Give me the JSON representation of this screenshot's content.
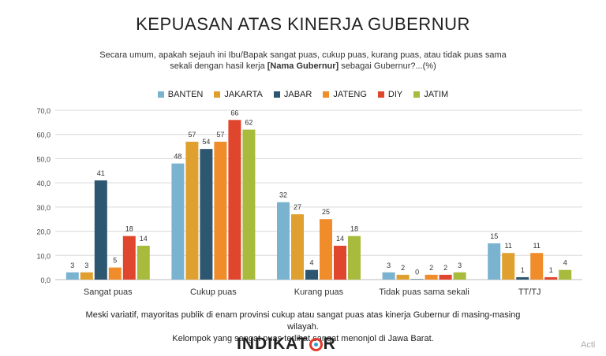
{
  "title": "KEPUASAN ATAS KINERJA GUBERNUR",
  "subtitle_line1": "Secara umum, apakah sejauh ini Ibu/Bapak sangat puas, cukup puas, kurang puas, atau tidak puas sama",
  "subtitle_line2_pre": "sekali dengan hasil kerja",
  "subtitle_line2_bold": "[Nama Gubernur]",
  "subtitle_line2_post": "sebagai Gubernur?...(%)",
  "footnote_line1": "Meski variatif, mayoritas publik di enam provinsi cukup atau sangat puas atas kinerja Gubernur di masing-masing wilayah.",
  "footnote_line2": "Kelompok yang sangat puas terlihat sangat menonjol di Jawa Barat.",
  "logo": {
    "text_before": "INDIKAT",
    "text_after": "R"
  },
  "watermark": "Acti",
  "chart_data": {
    "type": "bar",
    "categories": [
      "Sangat puas",
      "Cukup puas",
      "Kurang puas",
      "Tidak puas sama sekali",
      "TT/TJ"
    ],
    "ylim": [
      0,
      70
    ],
    "yticks": [
      "0,0",
      "10,0",
      "20,0",
      "30,0",
      "40,0",
      "50,0",
      "60,0",
      "70,0"
    ],
    "grid": true,
    "legend_position": "top",
    "series": [
      {
        "name": "BANTEN",
        "color": "#7ab3cf",
        "values": [
          3,
          48,
          32,
          3,
          15
        ]
      },
      {
        "name": "JAKARTA",
        "color": "#e0a030",
        "values": [
          3,
          57,
          27,
          2,
          11
        ]
      },
      {
        "name": "JABAR",
        "color": "#2d5670",
        "values": [
          41,
          54,
          4,
          0,
          1
        ]
      },
      {
        "name": "JATENG",
        "color": "#f08c2a",
        "values": [
          5,
          57,
          25,
          2,
          11
        ]
      },
      {
        "name": "DIY",
        "color": "#e0452e",
        "values": [
          18,
          66,
          14,
          2,
          1
        ]
      },
      {
        "name": "JATIM",
        "color": "#a9bb3c",
        "values": [
          14,
          62,
          18,
          3,
          4
        ]
      }
    ]
  }
}
